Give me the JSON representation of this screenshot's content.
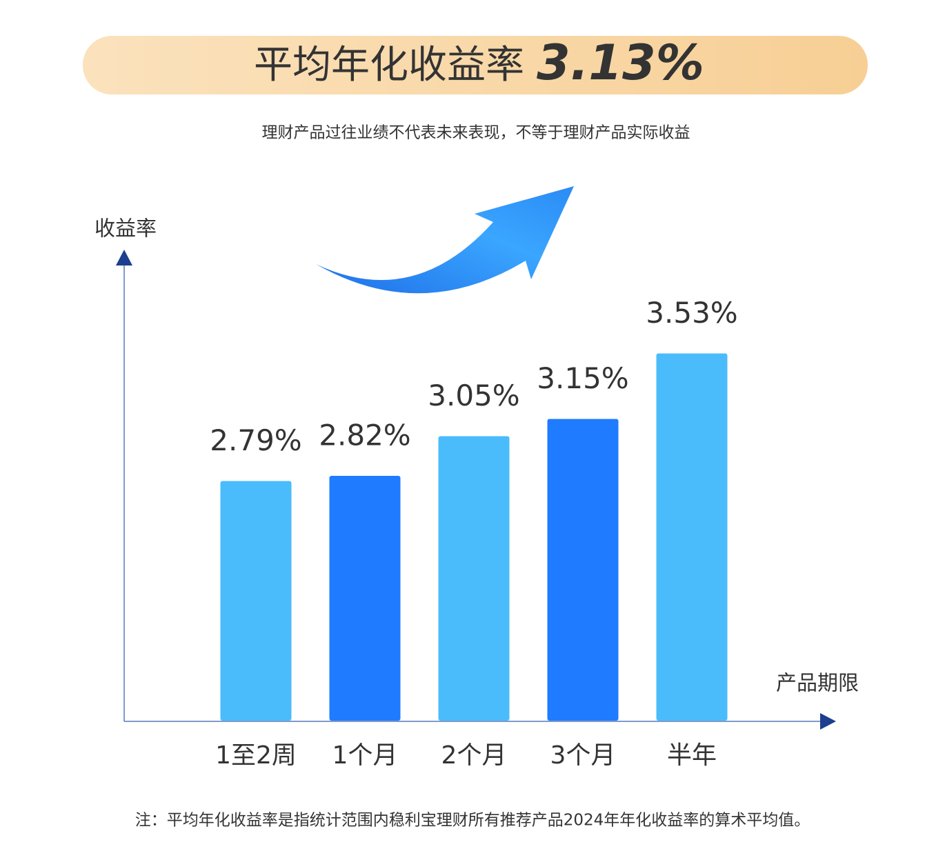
{
  "chart_data": {
    "type": "bar",
    "title": "平均年化收益率",
    "headline": "3.13%",
    "subtitle": "理财产品过往业绩不代表未来表现，不等于理财产品实际收益",
    "y_label": "收益率",
    "x_label": "产品期限",
    "categories": [
      "1至2周",
      "1个月",
      "2个月",
      "3个月",
      "半年"
    ],
    "values": [
      2.79,
      2.82,
      3.05,
      3.15,
      3.53
    ],
    "value_labels": [
      "2.79%",
      "2.82%",
      "3.05%",
      "3.15%",
      "3.53%"
    ],
    "colors": [
      "#4bbcfb",
      "#1f7bff",
      "#4bbcfb",
      "#1f7bff",
      "#4bbcfb"
    ],
    "ylim": [
      1.4,
      3.6
    ],
    "note": "注：平均年化收益率是指统计范围内稳利宝理财所有推荐产品2024年年化收益率的算术平均值。"
  }
}
